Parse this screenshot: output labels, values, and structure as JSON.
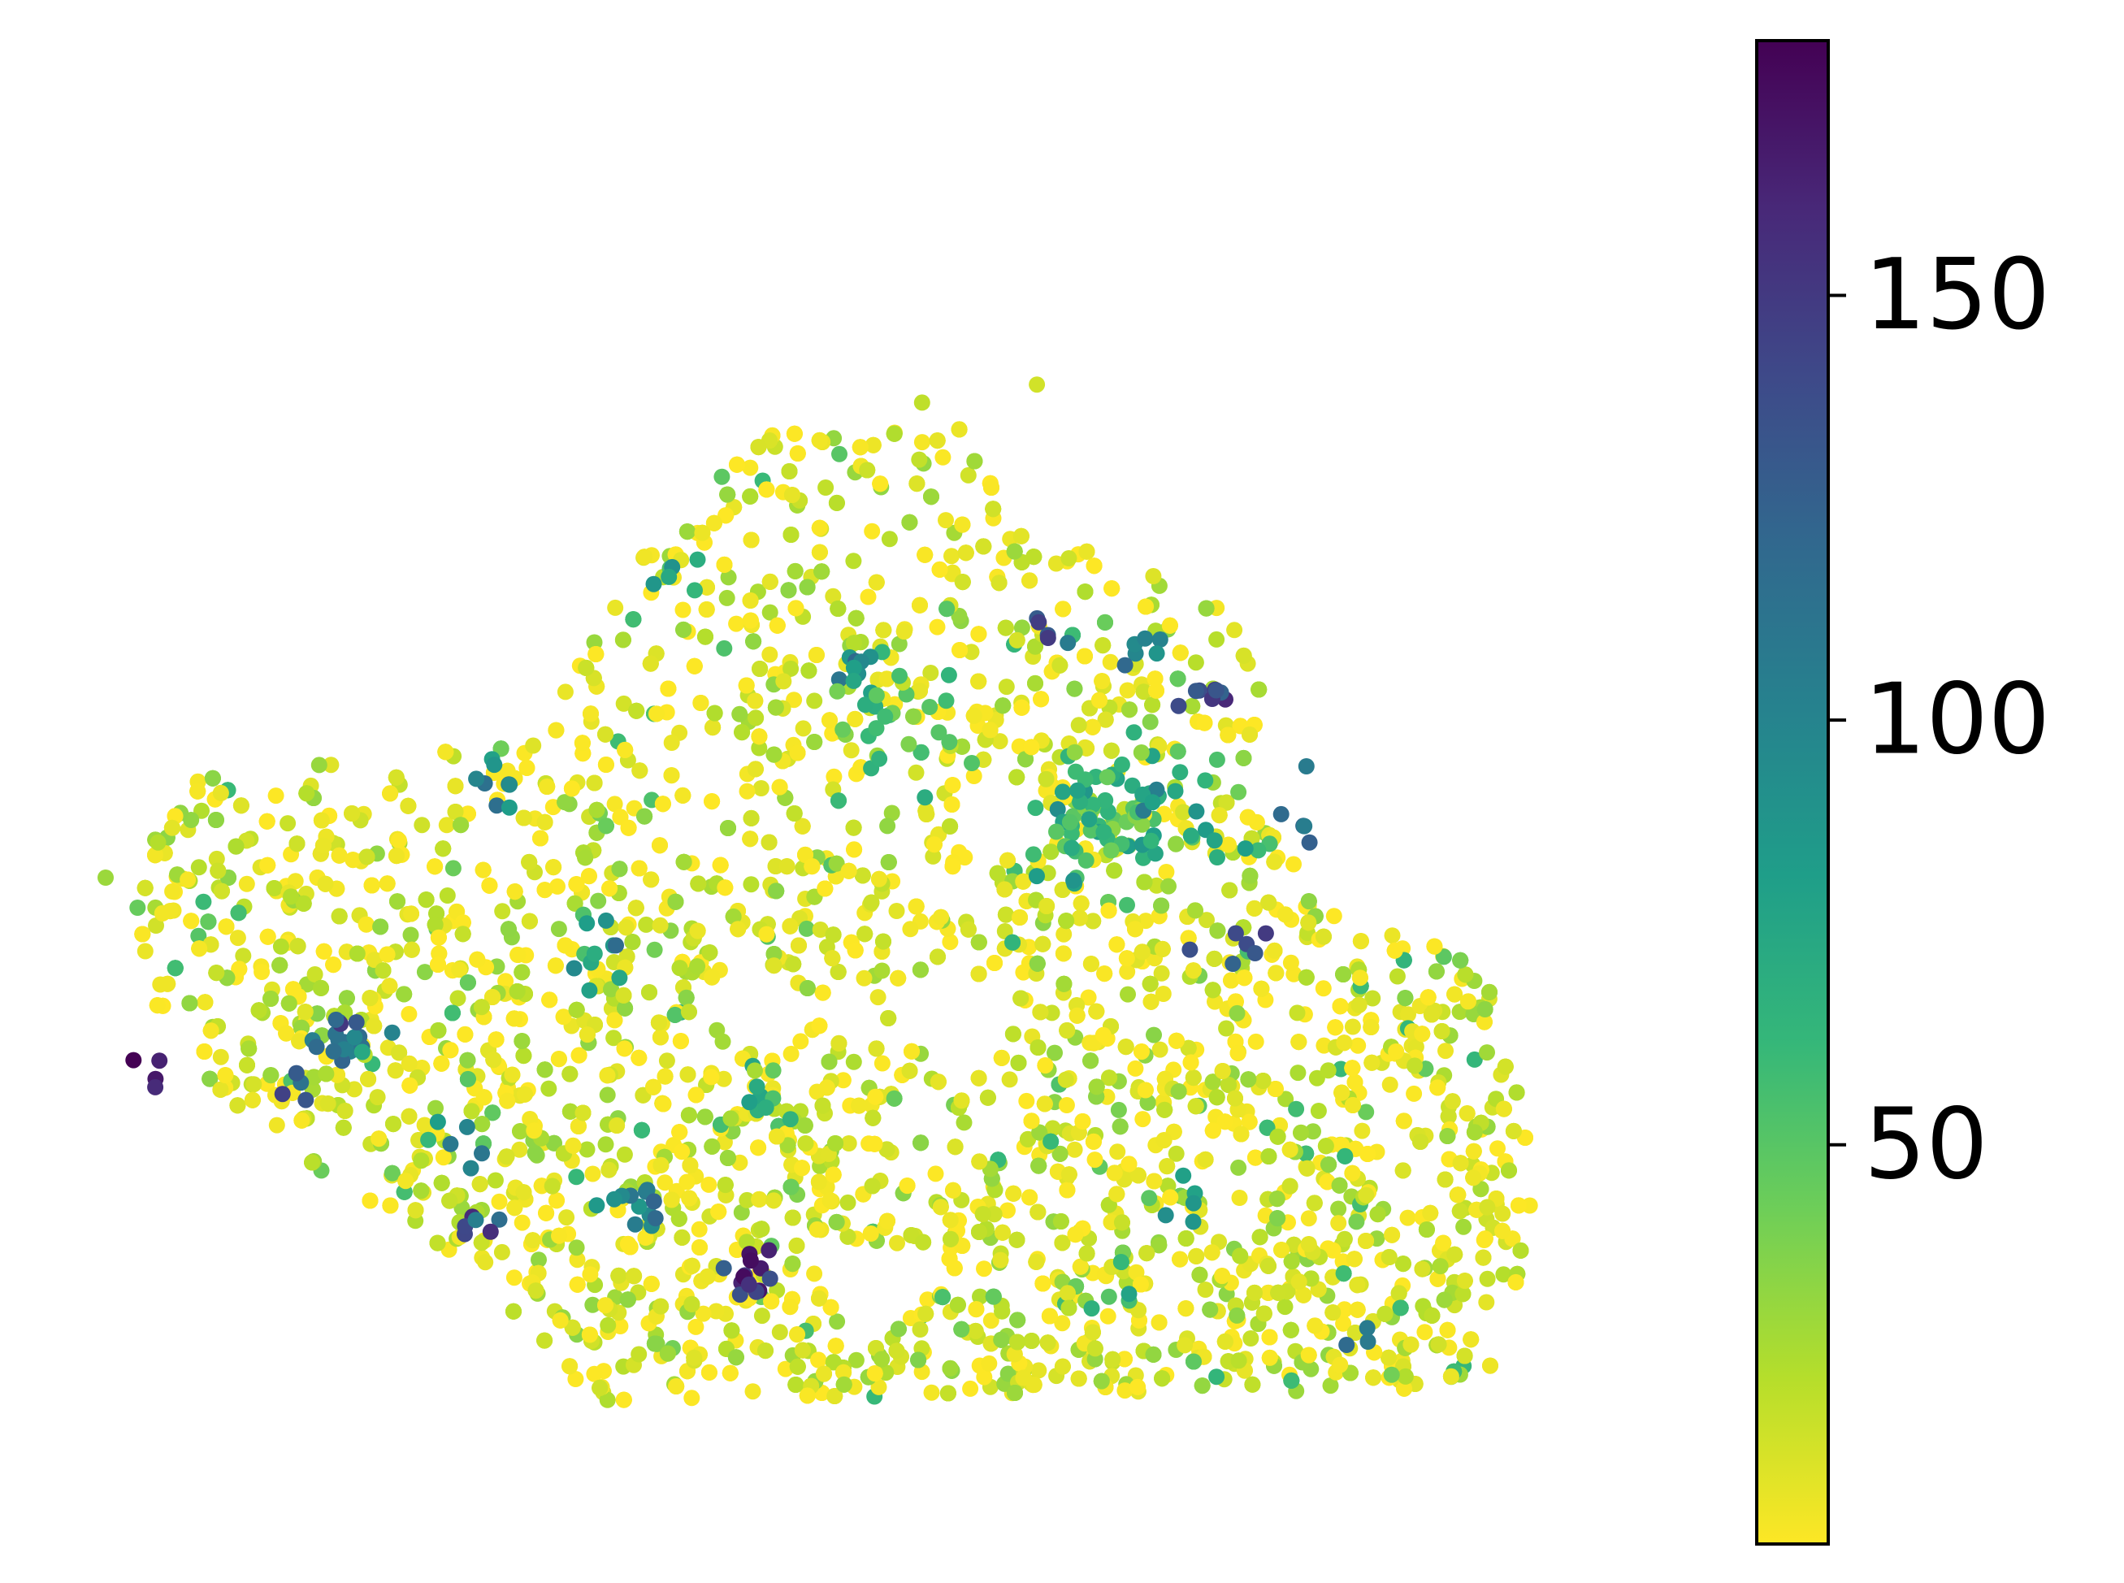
{
  "chart_data": {
    "type": "scatter",
    "title": "",
    "xlabel": "",
    "ylabel": "",
    "axes_visible": false,
    "colormap": "viridis",
    "colormap_stops": [
      "#fde725",
      "#b5de2b",
      "#6ece58",
      "#35b779",
      "#1f9e89",
      "#26828e",
      "#31688e",
      "#3e4989",
      "#482878",
      "#440154"
    ],
    "color_range": [
      3,
      180
    ],
    "colorbar": {
      "position": "right",
      "ticks": [
        {
          "value": 50,
          "label": "50"
        },
        {
          "value": 100,
          "label": "100"
        },
        {
          "value": 150,
          "label": "150"
        }
      ]
    },
    "point_count_estimate": 6000,
    "shape_polygon": [
      [
        1.5,
        11.7
      ],
      [
        6.8,
        12.3
      ],
      [
        8.3,
        15.5
      ],
      [
        10.5,
        17.4
      ],
      [
        13.8,
        17.6
      ],
      [
        14.0,
        16.2
      ],
      [
        15.8,
        15.3
      ],
      [
        17.6,
        14.6
      ],
      [
        18.2,
        13.0
      ],
      [
        17.8,
        11.4
      ],
      [
        19.0,
        9.8
      ],
      [
        21.2,
        9.0
      ],
      [
        22.0,
        7.6
      ],
      [
        22.5,
        4.4
      ],
      [
        21.6,
        1.5
      ],
      [
        7.4,
        1.3
      ],
      [
        5.8,
        3.5
      ],
      [
        2.0,
        6.0
      ],
      [
        0.4,
        8.4
      ],
      [
        0.7,
        10.6
      ]
    ],
    "gaps": [
      {
        "x": 13.4,
        "y": 7.6,
        "r": 0.8
      },
      {
        "x": 10.2,
        "y": 7.8,
        "r": 0.7
      },
      {
        "x": 12.0,
        "y": 3.2,
        "r": 0.7
      },
      {
        "x": 9.4,
        "y": 12.0,
        "r": 0.5
      },
      {
        "x": 13.9,
        "y": 11.0,
        "r": 0.6
      }
    ],
    "outliers": [
      {
        "x": 0.0,
        "y": 10.0,
        "v": 30
      },
      {
        "x": 0.5,
        "y": 9.5,
        "v": 45
      },
      {
        "x": 12.8,
        "y": 17.9,
        "v": 20
      },
      {
        "x": 14.6,
        "y": 18.2,
        "v": 15
      }
    ],
    "hotspots": [
      {
        "x": 3.8,
        "y": 7.2,
        "v": 110,
        "n": 18
      },
      {
        "x": 0.8,
        "y": 6.8,
        "v": 170,
        "n": 4
      },
      {
        "x": 8.3,
        "y": 4.5,
        "v": 100,
        "n": 12
      },
      {
        "x": 10.2,
        "y": 3.3,
        "v": 150,
        "n": 14
      },
      {
        "x": 15.5,
        "y": 11.0,
        "v": 60,
        "n": 60
      },
      {
        "x": 16.8,
        "y": 11.2,
        "v": 70,
        "n": 30
      },
      {
        "x": 17.3,
        "y": 13.0,
        "v": 140,
        "n": 8
      },
      {
        "x": 14.8,
        "y": 14.0,
        "v": 130,
        "n": 5
      },
      {
        "x": 16.2,
        "y": 13.8,
        "v": 90,
        "n": 6
      },
      {
        "x": 17.7,
        "y": 8.9,
        "v": 130,
        "n": 6
      },
      {
        "x": 18.8,
        "y": 11.2,
        "v": 110,
        "n": 5
      },
      {
        "x": 11.8,
        "y": 13.5,
        "v": 90,
        "n": 10
      },
      {
        "x": 7.8,
        "y": 8.6,
        "v": 85,
        "n": 10
      },
      {
        "x": 5.7,
        "y": 4.2,
        "v": 140,
        "n": 6
      },
      {
        "x": 10.4,
        "y": 6.4,
        "v": 60,
        "n": 10
      },
      {
        "x": 12.2,
        "y": 12.6,
        "v": 50,
        "n": 25
      },
      {
        "x": 19.8,
        "y": 2.4,
        "v": 100,
        "n": 3
      },
      {
        "x": 16.6,
        "y": 4.6,
        "v": 70,
        "n": 6
      },
      {
        "x": 15.9,
        "y": 3.0,
        "v": 80,
        "n": 4
      },
      {
        "x": 5.4,
        "y": 5.6,
        "v": 90,
        "n": 6
      },
      {
        "x": 3.0,
        "y": 6.6,
        "v": 140,
        "n": 4
      },
      {
        "x": 9.0,
        "y": 15.0,
        "v": 90,
        "n": 6
      },
      {
        "x": 6.0,
        "y": 11.5,
        "v": 90,
        "n": 8
      }
    ],
    "base_value_range": [
      3,
      35
    ]
  }
}
